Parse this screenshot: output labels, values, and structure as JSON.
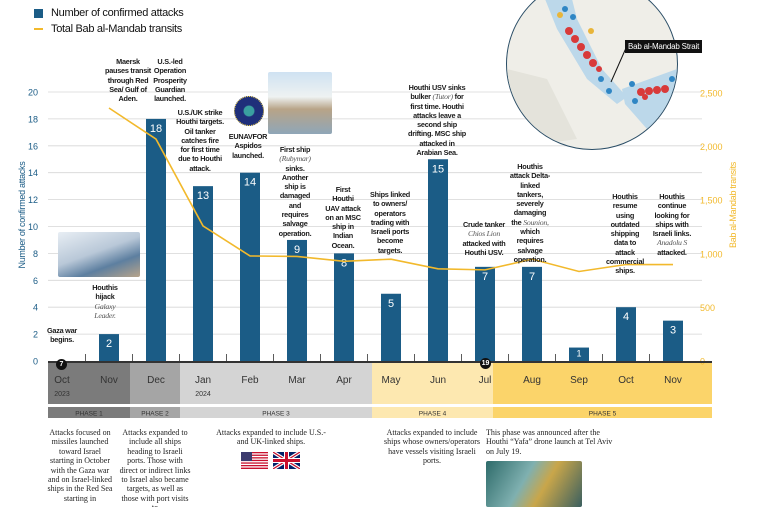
{
  "legend": {
    "bars": "Number of confirmed attacks",
    "line": "Total Bab al-Mandab transits"
  },
  "colors": {
    "bars": "#1b5c86",
    "line": "#f2b92c",
    "phase1": "#7b7b7b",
    "phase2": "#a5a5a5",
    "phase3": "#d4d4d4",
    "phase4": "#fde8b0",
    "phase5": "#fbd46a"
  },
  "chart_data": {
    "type": "bar",
    "categories": [
      "Oct",
      "Nov",
      "Dec",
      "Jan",
      "Feb",
      "Mar",
      "Apr",
      "May",
      "Jun",
      "Jul",
      "Aug",
      "Sep",
      "Oct",
      "Nov"
    ],
    "years": [
      "2023",
      "",
      "",
      "2024",
      "",
      "",
      "",
      "",
      "",
      "",
      "",
      "",
      "",
      ""
    ],
    "series": [
      {
        "name": "Number of confirmed attacks",
        "type": "bar",
        "axis": "left",
        "values": [
          0,
          2,
          18,
          13,
          14,
          9,
          8,
          5,
          15,
          7,
          7,
          1,
          4,
          3
        ]
      },
      {
        "name": "Total Bab al-Mandab transits",
        "type": "line",
        "axis": "right",
        "values": [
          null,
          2360,
          2070,
          1260,
          980,
          975,
          930,
          950,
          860,
          850,
          950,
          835,
          900,
          900
        ]
      }
    ],
    "ylabel": "Number of confirmed attacks",
    "ylim": [
      0,
      20
    ],
    "yticks": [
      0,
      2,
      4,
      6,
      8,
      10,
      12,
      14,
      16,
      18,
      20
    ],
    "y2label": "Bab al-Mandab transits",
    "y2lim": [
      0,
      2500
    ],
    "y2ticks": [
      "0",
      "500",
      "1,000",
      "1,500",
      "2,000",
      "2,500"
    ],
    "y2tick_values": [
      0,
      500,
      1000,
      1500,
      2000,
      2500
    ],
    "grid": true,
    "legend_position": "top-left",
    "date_markers": [
      "7",
      "19"
    ]
  },
  "phases": [
    "PHASE 1",
    "PHASE 2",
    "PHASE 3",
    "PHASE 4",
    "PHASE 5"
  ],
  "annotations": [
    {
      "pre": "Gaza war begins.",
      "italic": "",
      "post": ""
    },
    {
      "pre": "Houthis hijack ",
      "italic": "Galaxy Leader.",
      "post": ""
    },
    {
      "pre": "Maersk pauses transit through Red Sea/ Gulf of Aden.",
      "italic": "",
      "post": ""
    },
    {
      "pre": "U.S.-led Operation Prosperity Guardian launched.",
      "italic": "",
      "post": ""
    },
    {
      "pre": "U.S./UK strike Houthi targets. Oil tanker catches fire for first time due to Houthi attack.",
      "italic": "",
      "post": ""
    },
    {
      "pre": "EUNAVFOR Aspidos launched.",
      "italic": "",
      "post": ""
    },
    {
      "pre": "First ship ",
      "italic": "(Rubymar)",
      "post": " sinks. Another ship is damaged and requires salvage operation."
    },
    {
      "pre": "First Houthi UAV attack on an MSC ship in Indian Ocean.",
      "italic": "",
      "post": ""
    },
    {
      "pre": "Ships linked to owners/ operators trading with Israeli ports become targets.",
      "italic": "",
      "post": ""
    },
    {
      "pre": "Houthi USV sinks bulker ",
      "italic": "(Tutor)",
      "post": " for first time. Houthi attacks leave a second ship drifting. MSC ship attacked in Arabian Sea."
    },
    {
      "pre": "Crude tanker ",
      "italic": "Chios Lion",
      "post": " attacked with Houthi USV."
    },
    {
      "pre": "Houthis attack Delta-linked tankers, severely damaging the ",
      "italic": "Sounion,",
      "post": " which requires salvage operation."
    },
    {
      "pre": "Houthis resume using outdated shipping data to attack commercial ships.",
      "italic": "",
      "post": ""
    },
    {
      "pre": "Houthis continue looking for ships with Israeli links. ",
      "italic": "Anadolu S",
      "post": " attacked."
    }
  ],
  "map": {
    "label": "Bab al-Mandab Strait"
  },
  "phase_notes": [
    "Attacks focused on missiles launched toward Israel starting in October with the Gaza war and on Israel-linked ships in the Red Sea starting in",
    "Attacks expanded to include all ships heading to Israeli ports. Those with direct or indirect links to Israel also became targets, as well as those with port visits to",
    "Attacks expanded to include U.S.- and UK-linked ships.",
    "Attacks expanded to include ships whose owners/operators have vessels visiting Israeli ports.",
    "This phase was announced after the Houthi “Yafa” drone launch at Tel Aviv on July 19."
  ],
  "icons": [
    "us-flag-icon",
    "uk-flag-icon",
    "eunavfor-emblem-icon"
  ]
}
